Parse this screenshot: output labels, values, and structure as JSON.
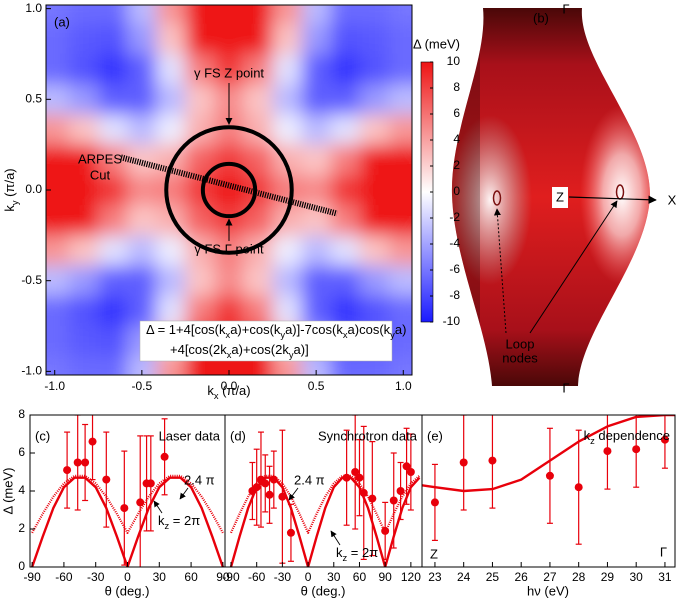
{
  "chart_data": [
    {
      "type": "heatmap",
      "panel_label": "(a)",
      "x_label": [
        "k",
        "x",
        " (π/a)"
      ],
      "y_label": [
        "k",
        "y",
        " (π/a)"
      ],
      "x": [
        -1,
        -0.833,
        -0.667,
        -0.5,
        -0.333,
        -0.167,
        0,
        0.167,
        0.333,
        0.5,
        0.667,
        0.833,
        1
      ],
      "y": [
        1,
        0.833,
        0.667,
        0.5,
        0.333,
        0.167,
        0,
        -0.167,
        -0.333,
        -0.5,
        -0.667,
        -0.833,
        -1
      ],
      "z": [
        [
          -6,
          -6.5,
          -6.5,
          -3,
          4.5,
          12.5,
          16,
          12.5,
          4.5,
          -3,
          -6.5,
          -6.5,
          -6
        ],
        [
          -6.5,
          -7.2,
          -7.5,
          -4.5,
          2.6,
          10.2,
          13.6,
          10.2,
          2.6,
          -4.5,
          -7.5,
          -7.2,
          -6.5
        ],
        [
          -6.5,
          -7.5,
          -8.8,
          -7,
          -1.3,
          5.5,
          8.5,
          5.5,
          -1.3,
          -7,
          -8.8,
          -7.5,
          -6.5
        ],
        [
          -3,
          -4.5,
          -7,
          -7,
          -3,
          2.5,
          5,
          2.5,
          -3,
          -7,
          -7,
          -4.5,
          -3
        ],
        [
          4.5,
          2.6,
          -1.3,
          -3,
          -0.8,
          3.4,
          5.5,
          3.4,
          -0.8,
          -3,
          -1.3,
          2.6,
          4.5
        ],
        [
          12.5,
          10.2,
          5.5,
          2.5,
          3.4,
          6.7,
          8.4,
          6.7,
          3.4,
          2.5,
          5.5,
          10.2,
          12.5
        ],
        [
          16,
          13.6,
          8.5,
          5,
          5.5,
          8.4,
          10,
          8.4,
          5.5,
          5,
          8.5,
          13.6,
          16
        ],
        [
          12.5,
          10.2,
          5.5,
          2.5,
          3.4,
          6.7,
          8.4,
          6.7,
          3.4,
          2.5,
          5.5,
          10.2,
          12.5
        ],
        [
          4.5,
          2.6,
          -1.3,
          -3,
          -0.8,
          3.4,
          5.5,
          3.4,
          -0.8,
          -3,
          -1.3,
          2.6,
          4.5
        ],
        [
          -3,
          -4.5,
          -7,
          -7,
          -3,
          2.5,
          5,
          2.5,
          -3,
          -7,
          -7,
          -4.5,
          -3
        ],
        [
          -6.5,
          -7.5,
          -8.8,
          -7,
          -1.3,
          5.5,
          8.5,
          5.5,
          -1.3,
          -7,
          -8.8,
          -7.5,
          -6.5
        ],
        [
          -6.5,
          -7.2,
          -7.5,
          -4.5,
          2.6,
          10.2,
          13.6,
          10.2,
          2.6,
          -4.5,
          -7.5,
          -7.2,
          -6.5
        ],
        [
          -6,
          -6.5,
          -6.5,
          -3,
          4.5,
          12.5,
          16,
          12.5,
          4.5,
          -3,
          -6.5,
          -6.5,
          -6
        ]
      ],
      "xlim": [
        -1.05,
        1.05
      ],
      "ylim": [
        -1.02,
        1.02
      ],
      "xticks": [
        {
          "value": -1,
          "label": "-1.0"
        },
        -0.5,
        {
          "value": 0,
          "label": "0.0"
        },
        0.5,
        {
          "value": 1,
          "label": "1.0"
        }
      ],
      "yticks": [
        {
          "value": -1,
          "label": "-1.0"
        },
        -0.5,
        {
          "value": 0,
          "label": "0.0"
        },
        0.5,
        {
          "value": 1,
          "label": "1.0"
        }
      ],
      "colorbar_label": "Δ (meV)",
      "clim": [
        -10,
        10
      ],
      "cticks": [
        10,
        8,
        6,
        4,
        2,
        0,
        -2,
        -4,
        -6,
        -8,
        -10
      ],
      "colors": [
        "#1a1aff",
        "#ffffff",
        "#ee1414"
      ],
      "annotations": {
        "z_point": "γ FS Z point",
        "gamma_point": "γ FS Γ point",
        "cut": [
          "ARPES",
          "Cut"
        ]
      },
      "formula": [
        [
          "Δ = 1+4[cos(k",
          "x",
          "a)+cos(k",
          "y",
          "a)]-7cos(k",
          "x",
          "a)cos(k",
          "y",
          "a)"
        ],
        [
          "+4[cos(2k",
          "x",
          "a)+cos(2k",
          "y",
          "a)]"
        ]
      ]
    },
    {
      "type": "scatter_fit",
      "panel_label": "(c)",
      "title": "Laser data",
      "x_label": "θ (deg.)",
      "y_label": "Δ (meV)",
      "color": "#e8000b",
      "xlim": [
        -92,
        92
      ],
      "ylim": [
        0,
        8
      ],
      "xticks": [
        -90,
        -60,
        -30,
        0,
        30,
        60,
        90
      ],
      "yticks": [
        0,
        2,
        4,
        6,
        8
      ],
      "points": {
        "x": [
          -57,
          -47,
          -40,
          -33,
          -20,
          -3,
          12,
          18,
          22,
          35
        ],
        "y": [
          5.1,
          5.5,
          5.5,
          6.6,
          4.6,
          3.1,
          3.4,
          4.4,
          4.4,
          5.8
        ],
        "err": [
          2.0,
          2.5,
          2.0,
          2.0,
          2.5,
          3.0,
          3.5,
          2.5,
          2.5,
          2.0
        ]
      },
      "curves": [
        {
          "label": [
            "k",
            "z",
            " = 2π"
          ],
          "style": "solid",
          "x": [
            -90,
            -80,
            -70,
            -60,
            -50,
            -40,
            -30,
            -20,
            -10,
            0,
            10,
            20,
            30,
            40,
            50,
            60,
            70,
            80,
            90
          ],
          "values": [
            0,
            1.6,
            3.1,
            4.2,
            4.7,
            4.7,
            4.2,
            3.1,
            1.6,
            0,
            1.6,
            3.1,
            4.2,
            4.7,
            4.7,
            4.2,
            3.1,
            1.6,
            0
          ]
        },
        {
          "label": "2.4 π",
          "style": "dotted",
          "x": [
            -90,
            -80,
            -70,
            -60,
            -50,
            -40,
            -30,
            -20,
            -10,
            0,
            10,
            20,
            30,
            40,
            50,
            60,
            70,
            80,
            90
          ],
          "values": [
            1.8,
            2.8,
            3.7,
            4.4,
            4.8,
            4.8,
            4.4,
            3.7,
            2.8,
            1.8,
            2.8,
            3.7,
            4.4,
            4.8,
            4.8,
            4.4,
            3.7,
            2.8,
            1.8
          ]
        }
      ]
    },
    {
      "type": "scatter_fit",
      "panel_label": "(d)",
      "title": "Synchrotron data",
      "x_label": "θ (deg.)",
      "color": "#e8000b",
      "xlim": [
        -97,
        133
      ],
      "ylim": [
        0,
        8
      ],
      "xticks": [
        -90,
        -60,
        -30,
        0,
        30,
        60,
        90,
        120
      ],
      "points": {
        "x": [
          -65,
          -60,
          -55,
          -50,
          -45,
          -40,
          -30,
          -20,
          45,
          55,
          60,
          65,
          75,
          90,
          100,
          108,
          115,
          120
        ],
        "y": [
          4.0,
          4.2,
          4.6,
          4.4,
          3.8,
          4.6,
          3.7,
          1.8,
          4.7,
          5.0,
          4.7,
          3.9,
          3.6,
          1.9,
          3.5,
          4.0,
          5.3,
          5.0
        ],
        "err": [
          1.5,
          2.0,
          2.5,
          1.5,
          1.5,
          1.5,
          3.5,
          1.5,
          2.5,
          3.0,
          2.0,
          3.5,
          3.0,
          1.5,
          2.5,
          1.5,
          2.0,
          2.0
        ]
      },
      "curves": [
        {
          "label": [
            "k",
            "z",
            " = 2π"
          ],
          "style": "solid",
          "x": [
            -90,
            -80,
            -70,
            -60,
            -50,
            -40,
            -30,
            -20,
            -10,
            0,
            10,
            20,
            30,
            40,
            50,
            60,
            70,
            80,
            90,
            100,
            110,
            120,
            130
          ],
          "values": [
            0,
            1.6,
            3.1,
            4.2,
            4.7,
            4.7,
            4.2,
            3.1,
            1.6,
            0,
            1.6,
            3.1,
            4.2,
            4.7,
            4.7,
            4.2,
            3.1,
            1.6,
            0,
            1.6,
            3.1,
            4.2,
            4.7
          ]
        },
        {
          "label": "2.4 π",
          "style": "dotted",
          "x": [
            -90,
            -80,
            -70,
            -60,
            -50,
            -40,
            -30,
            -20,
            -10,
            0,
            10,
            20,
            30,
            40,
            50,
            60,
            70,
            80,
            90,
            100,
            110,
            120,
            130
          ],
          "values": [
            1.8,
            2.8,
            3.7,
            4.4,
            4.8,
            4.8,
            4.4,
            3.7,
            2.8,
            1.8,
            2.8,
            3.7,
            4.4,
            4.8,
            4.8,
            4.4,
            3.7,
            2.8,
            1.8,
            2.8,
            3.7,
            4.4,
            4.8
          ]
        }
      ]
    },
    {
      "type": "scatter_fit",
      "panel_label": "(e)",
      "title": [
        "k",
        "z",
        " dependence"
      ],
      "x_label": "hν (eV)",
      "color": "#e8000b",
      "left_label": "Z",
      "right_label": "Γ",
      "xlim": [
        22.55,
        31.35
      ],
      "ylim": [
        0,
        8
      ],
      "xticks": [
        23,
        24,
        25,
        26,
        27,
        28,
        29,
        30,
        31
      ],
      "points": {
        "x": [
          23,
          24,
          25,
          27,
          28,
          29,
          30,
          31
        ],
        "y": [
          3.4,
          5.5,
          5.6,
          4.8,
          4.2,
          6.1,
          6.2,
          6.7
        ],
        "err": [
          2.0,
          2.5,
          2.5,
          2.5,
          3.0,
          2.0,
          2.0,
          1.5
        ]
      },
      "curves": [
        {
          "style": "solid",
          "x": [
            22.55,
            23,
            24,
            25,
            26,
            27,
            28,
            29,
            30,
            31,
            31.35
          ],
          "values": [
            4.3,
            4.2,
            4.0,
            4.1,
            4.6,
            5.6,
            6.6,
            7.4,
            7.9,
            8.0,
            8.0
          ]
        }
      ]
    }
  ],
  "diagram": {
    "label": "(b)",
    "top": "Γ",
    "bottom": "Γ",
    "center": "Z",
    "direction": "X",
    "nodes_label": [
      "Loop",
      "nodes"
    ]
  }
}
